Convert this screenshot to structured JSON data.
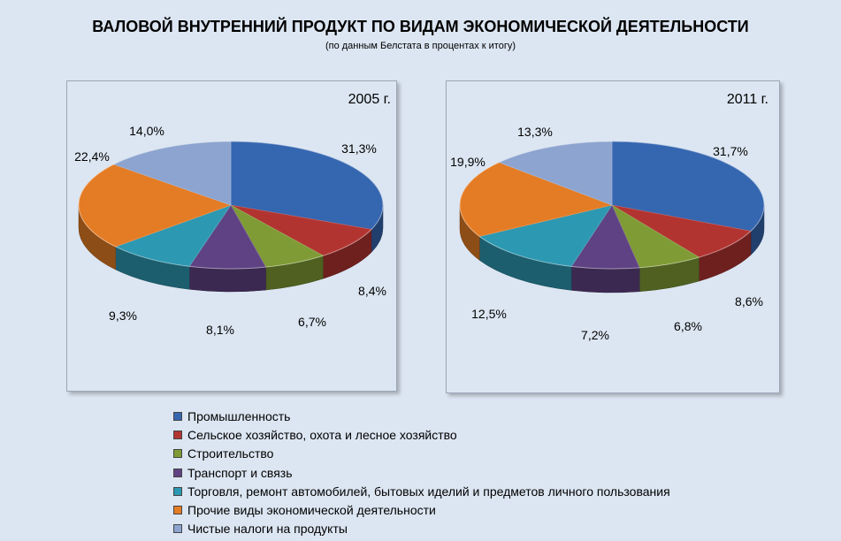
{
  "title": "ВАЛОВОЙ ВНУТРЕННИЙ ПРОДУКТ ПО ВИДАМ ЭКОНОМИЧЕСКОЙ ДЕЯТЕЛЬНОСТИ",
  "subtitle": "(по данным Белстата в процентах к итогу)",
  "chart_data": [
    {
      "type": "pie",
      "title": "2005 г.",
      "categories": [
        "Промышленность",
        "Сельское хозяйство, охота и лесное хозяйство",
        "Строительство",
        "Транспорт и связь",
        "Торговля, ремонт автомобилей, бытовых иделий и предметов личного пользования",
        "Прочие виды экономической деятельности",
        "Чистые налоги на продукты"
      ],
      "values": [
        31.3,
        8.4,
        6.7,
        8.1,
        9.3,
        22.4,
        14.0
      ],
      "labels": [
        "31,3%",
        "8,4%",
        "6,7%",
        "8,1%",
        "9,3%",
        "22,4%",
        "14,0%"
      ],
      "legend_position": "bottom"
    },
    {
      "type": "pie",
      "title": "2011 г.",
      "categories": [
        "Промышленность",
        "Сельское хозяйство, охота и лесное хозяйство",
        "Строительство",
        "Транспорт и связь",
        "Торговля, ремонт автомобилей, бытовых иделий и предметов личного пользования",
        "Прочие виды экономической деятельности",
        "Чистые налоги на продукты"
      ],
      "values": [
        31.7,
        8.6,
        6.8,
        7.2,
        12.5,
        19.9,
        13.3
      ],
      "labels": [
        "31,7%",
        "8,6%",
        "6,8%",
        "7,2%",
        "12,5%",
        "19,9%",
        "13,3%"
      ],
      "legend_position": "bottom"
    }
  ],
  "colors": [
    "#3566b0",
    "#b23431",
    "#7f9b35",
    "#5f4283",
    "#2d98b1",
    "#e47c25",
    "#8ca4cf"
  ],
  "legend": [
    "Промышленность",
    "Сельское хозяйство, охота и лесное хозяйство",
    "Строительство",
    "Транспорт и связь",
    "Торговля, ремонт автомобилей, бытовых иделий и предметов личного пользования",
    "Прочие виды экономической деятельности",
    "Чистые налоги на продукты"
  ]
}
